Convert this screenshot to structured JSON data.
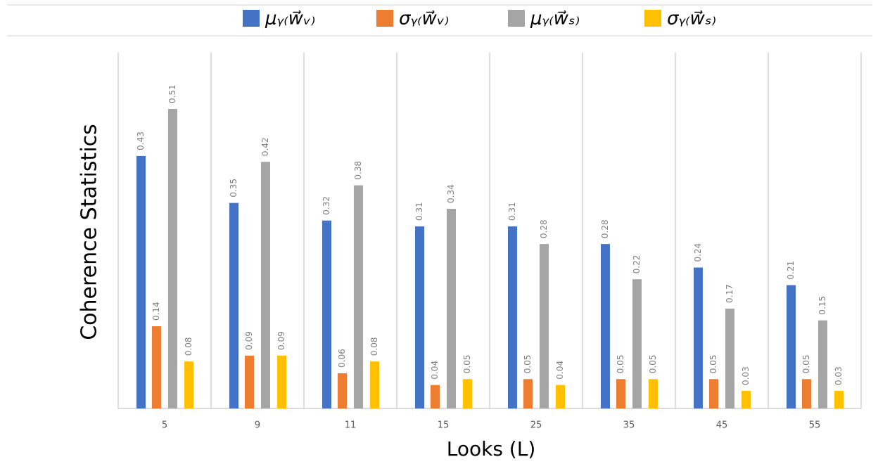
{
  "chart_data": {
    "type": "bar",
    "x_label": "Looks (L)",
    "y_label": "Coherence Statistics",
    "categories": [
      "5",
      "9",
      "11",
      "15",
      "25",
      "35",
      "45",
      "55"
    ],
    "series": [
      {
        "name": "μᵧ₍w⃗ᵥ₎",
        "color": "#4472c4",
        "values": [
          0.43,
          0.35,
          0.32,
          0.31,
          0.31,
          0.28,
          0.24,
          0.21
        ]
      },
      {
        "name": "σᵧ₍w⃗ᵥ₎",
        "color": "#ed7d31",
        "values": [
          0.14,
          0.09,
          0.06,
          0.04,
          0.05,
          0.05,
          0.05,
          0.05
        ]
      },
      {
        "name": "μᵧ₍w⃗ₛ₎",
        "color": "#a5a5a5",
        "values": [
          0.51,
          0.42,
          0.38,
          0.34,
          0.28,
          0.22,
          0.17,
          0.15
        ]
      },
      {
        "name": "σᵧ₍w⃗ₛ₎",
        "color": "#ffc000",
        "values": [
          0.08,
          0.09,
          0.08,
          0.05,
          0.04,
          0.05,
          0.03,
          0.03
        ]
      }
    ]
  }
}
